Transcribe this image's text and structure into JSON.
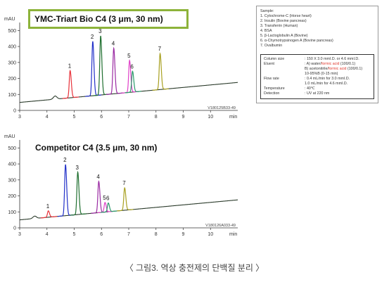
{
  "caption": "〈 그림3. 역상 충전제의 단백질 분리 〉",
  "chart_data": [
    {
      "type": "line",
      "title": "YMC-Triart Bio C4 (3 μm, 30 nm)",
      "ylabel": "mAU",
      "xlabel": "min",
      "code": "V180125B33-49",
      "xlim": [
        3,
        11
      ],
      "ylim": [
        0,
        550
      ],
      "x_ticks": [
        3,
        4,
        5,
        6,
        7,
        8,
        9,
        10
      ],
      "y_ticks": [
        0,
        100,
        200,
        300,
        400,
        500
      ],
      "baseline": [
        [
          3,
          50
        ],
        [
          11,
          175
        ]
      ],
      "peaks": [
        {
          "label": "1",
          "x": 4.85,
          "height": 170,
          "color": "#e8323a"
        },
        {
          "label": "2",
          "x": 5.68,
          "height": 340,
          "color": "#2130c8"
        },
        {
          "label": "3",
          "x": 5.97,
          "height": 370,
          "color": "#1f6f2f"
        },
        {
          "label": "4",
          "x": 6.45,
          "height": 285,
          "color": "#9a2aa2"
        },
        {
          "label": "5",
          "x": 7.03,
          "height": 200,
          "color": "#e040c8"
        },
        {
          "label": "6",
          "x": 7.14,
          "height": 130,
          "color": "#2a9a6a"
        },
        {
          "label": "7",
          "x": 8.15,
          "height": 225,
          "color": "#a8a020"
        }
      ],
      "minor_peaks": [
        {
          "x": 4.3,
          "height": 20
        }
      ]
    },
    {
      "type": "line",
      "title": "Competitor C4 (3.5 μm, 30 nm)",
      "ylabel": "mAU",
      "xlabel": "min",
      "code": "V180126A033-49",
      "xlim": [
        3,
        11
      ],
      "ylim": [
        0,
        550
      ],
      "x_ticks": [
        3,
        4,
        5,
        6,
        7,
        8,
        9,
        10
      ],
      "y_ticks": [
        0,
        100,
        200,
        300,
        400,
        500
      ],
      "baseline": [
        [
          3,
          50
        ],
        [
          11,
          175
        ]
      ],
      "peaks": [
        {
          "label": "1",
          "x": 4.05,
          "height": 40,
          "color": "#e8323a"
        },
        {
          "label": "2",
          "x": 4.68,
          "height": 320,
          "color": "#2130c8"
        },
        {
          "label": "3",
          "x": 5.13,
          "height": 265,
          "color": "#1f6f2f"
        },
        {
          "label": "4",
          "x": 5.9,
          "height": 195,
          "color": "#9a2aa2"
        },
        {
          "label": "5",
          "x": 6.13,
          "height": 60,
          "color": "#e040c8"
        },
        {
          "label": "6",
          "x": 6.25,
          "height": 55,
          "color": "#2a9a6a"
        },
        {
          "label": "7",
          "x": 6.85,
          "height": 140,
          "color": "#a8a020"
        }
      ],
      "minor_peaks": [
        {
          "x": 3.55,
          "height": 15
        }
      ]
    }
  ],
  "info": {
    "samples_title": "Sample:",
    "samples": [
      "1. Cytochrome-C (Horse heart)",
      "2. Insulin (Bovine pancreas)",
      "3. Transferrin (Human)",
      "4. BSA",
      "5. β-Lactoglobulin A (Bovine)",
      "6. α-Chymotrypsinogen A (Bovine pancreas)",
      "7. Ovalbumin"
    ],
    "conditions": {
      "column_size_label": "Column size",
      "column_size": ": 150 X 3.0 mmI.D. or 4.6 mmI.D.",
      "eluent_label": "Eluent",
      "eluent_a_pre": ": A) water/",
      "eluent_a_red": "formic acid",
      "eluent_a_post": " (100/0.1)",
      "eluent_b_pre": "  B) acetonitrile/",
      "eluent_b_red": "formic acid",
      "eluent_b_post": " (100/0.1)",
      "gradient": "  10-95%B (0-15 min)",
      "flow_label": "Flow rate",
      "flow_1": ": 0.4 mL/min for 3.0 mmI.D.",
      "flow_2": "  1.0 mL/min for 4.6 mmI.D.",
      "temp_label": "Temperature",
      "temp": ": 40℃",
      "detection_label": "Detection",
      "detection": ": UV at 220 nm"
    }
  }
}
